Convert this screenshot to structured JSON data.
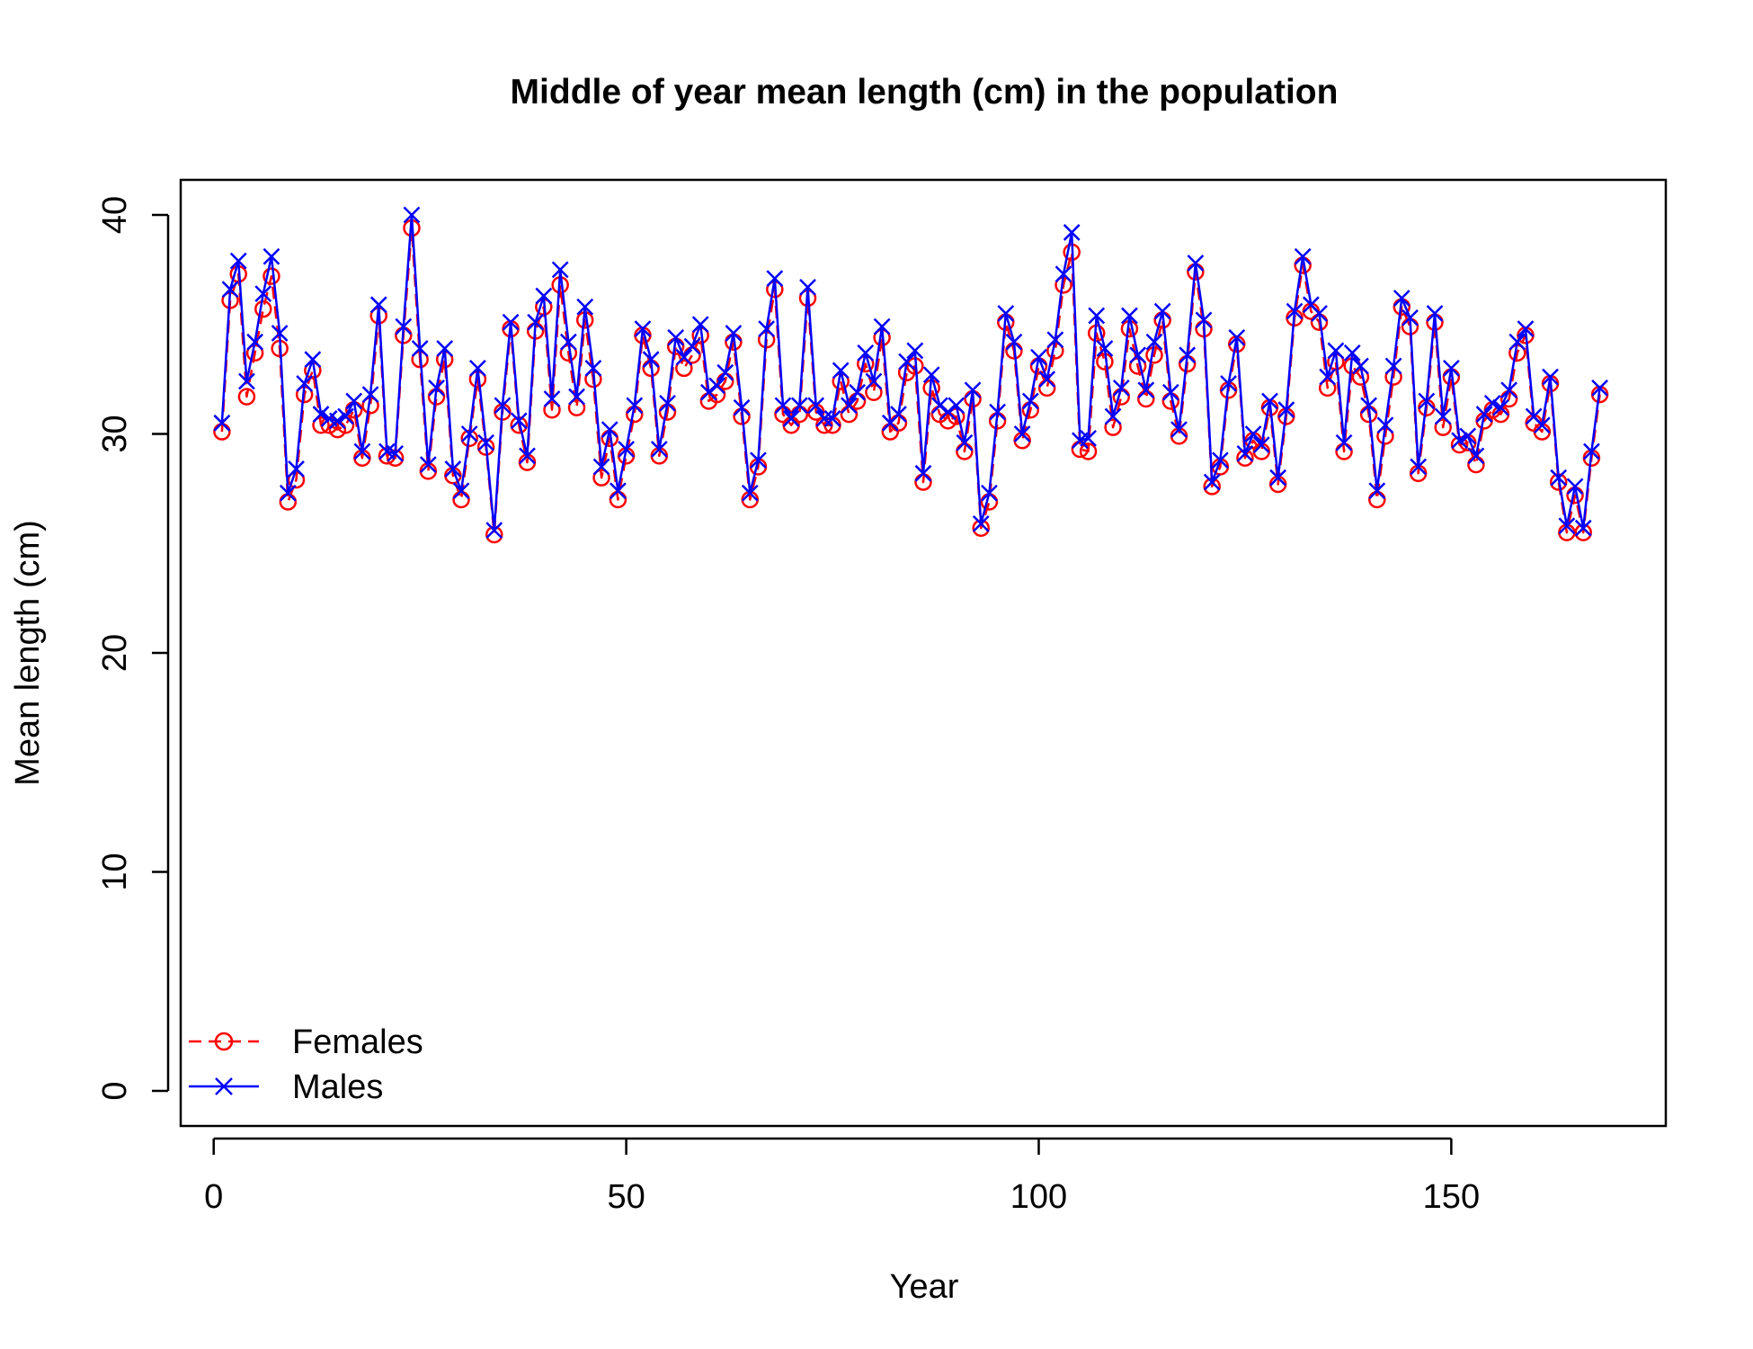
{
  "chart_data": {
    "type": "line",
    "title": "Middle of year mean length (cm) in the population",
    "xlabel": "Year",
    "ylabel": "Mean length (cm)",
    "xlim": [
      -4,
      176
    ],
    "ylim": [
      -1.6,
      41.6
    ],
    "xticks": [
      0,
      50,
      100,
      150
    ],
    "yticks": [
      0,
      10,
      20,
      30,
      40
    ],
    "grid": false,
    "legend_position": "bottom-left",
    "x": [
      1,
      2,
      3,
      4,
      5,
      6,
      7,
      8,
      9,
      10,
      11,
      12,
      13,
      14,
      15,
      16,
      17,
      18,
      19,
      20,
      21,
      22,
      23,
      24,
      25,
      26,
      27,
      28,
      29,
      30,
      31,
      32,
      33,
      34,
      35,
      36,
      37,
      38,
      39,
      40,
      41,
      42,
      43,
      44,
      45,
      46,
      47,
      48,
      49,
      50,
      51,
      52,
      53,
      54,
      55,
      56,
      57,
      58,
      59,
      60,
      61,
      62,
      63,
      64,
      65,
      66,
      67,
      68,
      69,
      70,
      71,
      72,
      73,
      74,
      75,
      76,
      77,
      78,
      79,
      80,
      81,
      82,
      83,
      84,
      85,
      86,
      87,
      88,
      89,
      90,
      91,
      92,
      93,
      94,
      95,
      96,
      97,
      98,
      99,
      100,
      101,
      102,
      103,
      104,
      105,
      106,
      107,
      108,
      109,
      110,
      111,
      112,
      113,
      114,
      115,
      116,
      117,
      118,
      119,
      120,
      121,
      122,
      123,
      124,
      125,
      126,
      127,
      128,
      129,
      130,
      131,
      132,
      133,
      134,
      135,
      136,
      137,
      138,
      139,
      140,
      141,
      142,
      143,
      144,
      145,
      146,
      147,
      148,
      149,
      150,
      151,
      152,
      153,
      154,
      155,
      156,
      157,
      158,
      159,
      160,
      161,
      162,
      163,
      164,
      165,
      166,
      167,
      168
    ],
    "series": [
      {
        "name": "Females",
        "color": "#ff0000",
        "line_style": "dashed",
        "marker": "open-circle",
        "values": [
          30.1,
          36.1,
          37.3,
          31.7,
          33.7,
          35.7,
          37.2,
          33.9,
          26.9,
          27.9,
          31.8,
          32.9,
          30.4,
          30.4,
          30.2,
          30.4,
          31.1,
          28.9,
          31.3,
          35.4,
          29.0,
          28.9,
          34.5,
          39.4,
          33.4,
          28.3,
          31.7,
          33.4,
          28.1,
          27.0,
          29.8,
          32.5,
          29.4,
          25.4,
          31.0,
          34.8,
          30.4,
          28.7,
          34.7,
          35.8,
          31.1,
          36.8,
          33.7,
          31.2,
          35.2,
          32.5,
          28.0,
          29.8,
          27.0,
          29.0,
          30.9,
          34.5,
          33.0,
          29.0,
          31.0,
          34.0,
          33.0,
          33.6,
          34.5,
          31.5,
          31.8,
          32.4,
          34.2,
          30.8,
          27.0,
          28.5,
          34.3,
          36.6,
          30.9,
          30.4,
          30.9,
          36.2,
          31.0,
          30.4,
          30.4,
          32.4,
          30.9,
          31.5,
          33.2,
          31.9,
          34.4,
          30.1,
          30.5,
          32.8,
          33.1,
          27.8,
          32.1,
          30.9,
          30.6,
          30.8,
          29.2,
          31.6,
          25.7,
          26.9,
          30.6,
          35.1,
          33.8,
          29.7,
          31.1,
          33.1,
          32.1,
          33.8,
          36.8,
          38.3,
          29.3,
          29.2,
          34.6,
          33.3,
          30.3,
          31.7,
          34.8,
          33.1,
          31.6,
          33.6,
          35.2,
          31.5,
          29.9,
          33.2,
          37.4,
          34.8,
          27.6,
          28.5,
          32.0,
          34.1,
          28.9,
          29.7,
          29.2,
          31.2,
          27.7,
          30.8,
          35.3,
          37.7,
          35.6,
          35.1,
          32.1,
          33.3,
          29.2,
          33.1,
          32.6,
          30.9,
          27.0,
          29.9,
          32.6,
          35.8,
          34.9,
          28.2,
          31.2,
          35.1,
          30.3,
          32.6,
          29.5,
          29.6,
          28.6,
          30.6,
          31.1,
          30.9,
          31.6,
          33.7,
          34.5,
          30.5,
          30.1,
          32.3,
          27.8,
          25.5,
          27.2,
          25.5,
          28.9,
          31.8
        ]
      },
      {
        "name": "Males",
        "color": "#0000ff",
        "line_style": "solid",
        "marker": "x",
        "values": [
          30.5,
          36.6,
          37.9,
          32.4,
          34.2,
          36.4,
          38.1,
          34.6,
          27.3,
          28.4,
          32.3,
          33.4,
          30.9,
          30.7,
          30.6,
          30.8,
          31.5,
          29.2,
          31.8,
          35.9,
          29.2,
          29.1,
          34.9,
          40.0,
          33.9,
          28.6,
          32.1,
          33.9,
          28.4,
          27.4,
          30.0,
          33.0,
          29.6,
          25.6,
          31.3,
          35.1,
          30.6,
          29.0,
          35.1,
          36.3,
          31.6,
          37.5,
          34.2,
          31.7,
          35.8,
          33.0,
          28.5,
          30.2,
          27.4,
          29.3,
          31.3,
          34.8,
          33.4,
          29.3,
          31.4,
          34.4,
          33.5,
          34.0,
          35.0,
          31.9,
          32.2,
          32.8,
          34.6,
          31.2,
          27.3,
          28.8,
          34.8,
          37.1,
          31.3,
          30.7,
          31.3,
          36.7,
          31.3,
          30.7,
          30.7,
          32.9,
          31.3,
          31.9,
          33.7,
          32.4,
          34.9,
          30.5,
          30.9,
          33.3,
          33.8,
          28.2,
          32.7,
          31.3,
          31.0,
          31.3,
          29.6,
          32.0,
          25.9,
          27.3,
          31.0,
          35.5,
          34.2,
          30.0,
          31.5,
          33.5,
          32.5,
          34.3,
          37.3,
          39.2,
          29.7,
          29.8,
          35.4,
          33.9,
          30.8,
          32.1,
          35.4,
          33.6,
          32.0,
          34.2,
          35.6,
          31.9,
          30.2,
          33.6,
          37.8,
          35.2,
          27.8,
          28.8,
          32.3,
          34.4,
          29.1,
          30.0,
          29.5,
          31.5,
          28.0,
          31.1,
          35.6,
          38.1,
          35.9,
          35.5,
          32.6,
          33.8,
          29.6,
          33.7,
          33.1,
          31.3,
          27.4,
          30.4,
          33.1,
          36.2,
          35.3,
          28.5,
          31.5,
          35.5,
          30.8,
          33.0,
          29.7,
          29.9,
          29.0,
          30.9,
          31.4,
          31.2,
          32.0,
          34.2,
          34.8,
          30.8,
          30.4,
          32.6,
          28.0,
          25.8,
          27.6,
          25.7,
          29.2,
          32.1
        ]
      }
    ]
  }
}
